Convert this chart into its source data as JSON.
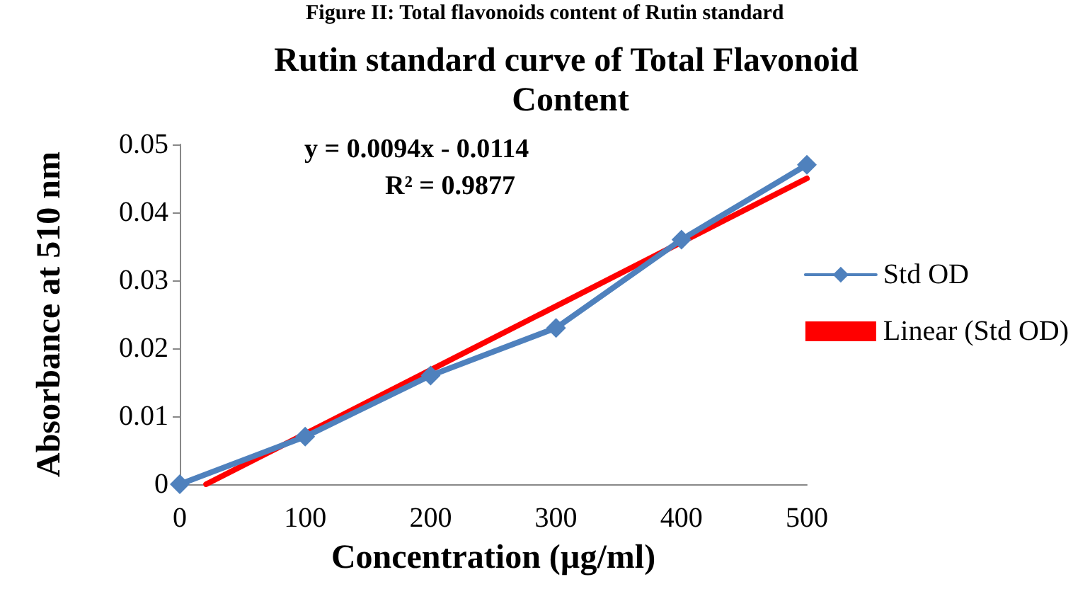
{
  "chart_data": {
    "type": "line",
    "title": "Rutin standard curve of Total Flavonoid Content",
    "xlabel": "Concentration (µg/ml)",
    "ylabel": "Absorbance at 510 nm",
    "annotations": [
      "Figure II: Total flavonoids content of Rutin standard",
      "y = 0.0094x - 0.0114",
      "R² = 0.9877"
    ],
    "x": [
      0,
      100,
      200,
      300,
      400,
      500
    ],
    "series": [
      {
        "name": "Std OD",
        "color": "#4f81bd",
        "values": [
          0,
          0.007,
          0.016,
          0.023,
          0.036,
          0.047
        ],
        "marker": "diamond"
      },
      {
        "name": "Linear (Std OD)",
        "color": "#ff0000",
        "x": [
          21,
          500
        ],
        "values": [
          0,
          0.045
        ],
        "marker": "none"
      }
    ],
    "xlim": [
      0,
      500
    ],
    "xticks": [
      0,
      100,
      200,
      300,
      400,
      500
    ],
    "ylim": [
      0,
      0.05
    ],
    "yticks": [
      0,
      0.01,
      0.02,
      0.03,
      0.04,
      0.05
    ],
    "grid": false,
    "legend": "right"
  }
}
